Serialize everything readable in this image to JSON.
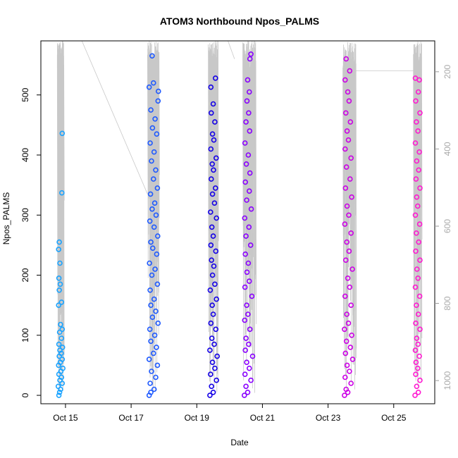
{
  "chart_data": {
    "type": "scatter",
    "title": "ATOM3 Northbound Npos_PALMS",
    "xlabel": "Date",
    "ylabel": "Npos_PALMS",
    "x_ticks": [
      "Oct 15",
      "Oct 17",
      "Oct 19",
      "Oct 21",
      "Oct 23",
      "Oct 25"
    ],
    "y_ticks": [
      0,
      100,
      200,
      300,
      400,
      500
    ],
    "y2_ticks": [
      200,
      400,
      600,
      800,
      1000
    ],
    "xlim_days": [
      14.25,
      26.25
    ],
    "ylim": [
      -14,
      590
    ],
    "y2lim": [
      1060,
      120
    ],
    "y2_reversed": true,
    "grid": false,
    "legend": "none",
    "secondary_series": {
      "name": "",
      "color": "#c8c8c8",
      "description_free": true
    },
    "clusters": [
      {
        "x_start": 14.75,
        "x_end": 14.95,
        "color": "#1aa3ff",
        "points": [
          [
            14.8,
            0
          ],
          [
            14.82,
            5
          ],
          [
            14.85,
            10
          ],
          [
            14.78,
            15
          ],
          [
            14.9,
            20
          ],
          [
            14.83,
            25
          ],
          [
            14.88,
            30
          ],
          [
            14.8,
            35
          ],
          [
            14.86,
            40
          ],
          [
            14.92,
            45
          ],
          [
            14.79,
            50
          ],
          [
            14.84,
            55
          ],
          [
            14.9,
            60
          ],
          [
            14.81,
            65
          ],
          [
            14.87,
            70
          ],
          [
            14.83,
            75
          ],
          [
            14.91,
            80
          ],
          [
            14.8,
            85
          ],
          [
            14.88,
            95
          ],
          [
            14.82,
            105
          ],
          [
            14.9,
            110
          ],
          [
            14.85,
            118
          ],
          [
            14.79,
            150
          ],
          [
            14.88,
            155
          ],
          [
            14.81,
            175
          ],
          [
            14.84,
            185
          ],
          [
            14.8,
            195
          ],
          [
            14.83,
            220
          ],
          [
            14.79,
            243
          ],
          [
            14.81,
            255
          ],
          [
            14.89,
            337
          ],
          [
            14.9,
            436
          ]
        ]
      },
      {
        "x_start": 17.5,
        "x_end": 17.85,
        "color": "#1f5aff",
        "points": [
          [
            17.55,
            0
          ],
          [
            17.6,
            5
          ],
          [
            17.7,
            10
          ],
          [
            17.58,
            20
          ],
          [
            17.75,
            30
          ],
          [
            17.62,
            40
          ],
          [
            17.8,
            50
          ],
          [
            17.55,
            60
          ],
          [
            17.68,
            70
          ],
          [
            17.77,
            80
          ],
          [
            17.6,
            90
          ],
          [
            17.72,
            100
          ],
          [
            17.57,
            110
          ],
          [
            17.82,
            120
          ],
          [
            17.65,
            130
          ],
          [
            17.75,
            140
          ],
          [
            17.6,
            150
          ],
          [
            17.7,
            160
          ],
          [
            17.58,
            175
          ],
          [
            17.8,
            185
          ],
          [
            17.63,
            200
          ],
          [
            17.73,
            210
          ],
          [
            17.56,
            220
          ],
          [
            17.78,
            235
          ],
          [
            17.66,
            245
          ],
          [
            17.6,
            255
          ],
          [
            17.81,
            265
          ],
          [
            17.7,
            280
          ],
          [
            17.57,
            290
          ],
          [
            17.76,
            300
          ],
          [
            17.64,
            310
          ],
          [
            17.72,
            320
          ],
          [
            17.59,
            335
          ],
          [
            17.8,
            345
          ],
          [
            17.68,
            360
          ],
          [
            17.75,
            375
          ],
          [
            17.62,
            390
          ],
          [
            17.7,
            405
          ],
          [
            17.58,
            420
          ],
          [
            17.78,
            435
          ],
          [
            17.65,
            445
          ],
          [
            17.73,
            460
          ],
          [
            17.6,
            475
          ],
          [
            17.82,
            490
          ],
          [
            17.55,
            513
          ],
          [
            17.68,
            520
          ],
          [
            17.64,
            565
          ],
          [
            17.83,
            506
          ]
        ]
      },
      {
        "x_start": 19.35,
        "x_end": 19.65,
        "color": "#1400e6",
        "points": [
          [
            19.4,
            0
          ],
          [
            19.5,
            5
          ],
          [
            19.45,
            15
          ],
          [
            19.6,
            25
          ],
          [
            19.42,
            35
          ],
          [
            19.55,
            45
          ],
          [
            19.48,
            55
          ],
          [
            19.62,
            65
          ],
          [
            19.4,
            75
          ],
          [
            19.53,
            85
          ],
          [
            19.46,
            95
          ],
          [
            19.58,
            110
          ],
          [
            19.43,
            120
          ],
          [
            19.5,
            135
          ],
          [
            19.47,
            150
          ],
          [
            19.6,
            160
          ],
          [
            19.41,
            175
          ],
          [
            19.55,
            185
          ],
          [
            19.48,
            200
          ],
          [
            19.52,
            215
          ],
          [
            19.45,
            225
          ],
          [
            19.58,
            240
          ],
          [
            19.43,
            250
          ],
          [
            19.5,
            265
          ],
          [
            19.46,
            280
          ],
          [
            19.6,
            295
          ],
          [
            19.42,
            305
          ],
          [
            19.54,
            320
          ],
          [
            19.48,
            335
          ],
          [
            19.57,
            345
          ],
          [
            19.44,
            360
          ],
          [
            19.51,
            375
          ],
          [
            19.47,
            385
          ],
          [
            19.59,
            395
          ],
          [
            19.43,
            410
          ],
          [
            19.52,
            425
          ],
          [
            19.48,
            435
          ],
          [
            19.55,
            455
          ],
          [
            19.44,
            470
          ],
          [
            19.5,
            485
          ],
          [
            19.43,
            513
          ],
          [
            19.57,
            528
          ]
        ]
      },
      {
        "x_start": 20.4,
        "x_end": 20.8,
        "color": "#8a00ff",
        "points": [
          [
            20.45,
            0
          ],
          [
            20.55,
            5
          ],
          [
            20.5,
            15
          ],
          [
            20.65,
            25
          ],
          [
            20.47,
            35
          ],
          [
            20.6,
            45
          ],
          [
            20.52,
            55
          ],
          [
            20.7,
            65
          ],
          [
            20.48,
            75
          ],
          [
            20.58,
            85
          ],
          [
            20.5,
            95
          ],
          [
            20.62,
            110
          ],
          [
            20.46,
            125
          ],
          [
            20.56,
            135
          ],
          [
            20.52,
            150
          ],
          [
            20.68,
            165
          ],
          [
            20.47,
            180
          ],
          [
            20.6,
            190
          ],
          [
            20.53,
            205
          ],
          [
            20.57,
            220
          ],
          [
            20.48,
            235
          ],
          [
            20.64,
            250
          ],
          [
            20.5,
            265
          ],
          [
            20.59,
            280
          ],
          [
            20.46,
            295
          ],
          [
            20.66,
            310
          ],
          [
            20.52,
            325
          ],
          [
            20.6,
            340
          ],
          [
            20.48,
            355
          ],
          [
            20.62,
            370
          ],
          [
            20.51,
            385
          ],
          [
            20.57,
            400
          ],
          [
            20.47,
            420
          ],
          [
            20.61,
            440
          ],
          [
            20.5,
            455
          ],
          [
            20.58,
            470
          ],
          [
            20.53,
            490
          ],
          [
            20.6,
            505
          ],
          [
            20.55,
            525
          ],
          [
            20.62,
            560
          ],
          [
            20.65,
            568
          ]
        ]
      },
      {
        "x_start": 23.45,
        "x_end": 23.85,
        "color": "#cc00e6",
        "points": [
          [
            23.5,
            0
          ],
          [
            23.6,
            5
          ],
          [
            23.55,
            10
          ],
          [
            23.7,
            20
          ],
          [
            23.52,
            30
          ],
          [
            23.65,
            40
          ],
          [
            23.58,
            50
          ],
          [
            23.75,
            60
          ],
          [
            23.53,
            70
          ],
          [
            23.68,
            80
          ],
          [
            23.56,
            90
          ],
          [
            23.72,
            100
          ],
          [
            23.5,
            110
          ],
          [
            23.62,
            120
          ],
          [
            23.57,
            135
          ],
          [
            23.7,
            150
          ],
          [
            23.52,
            165
          ],
          [
            23.66,
            180
          ],
          [
            23.6,
            195
          ],
          [
            23.74,
            210
          ],
          [
            23.54,
            225
          ],
          [
            23.64,
            240
          ],
          [
            23.57,
            255
          ],
          [
            23.7,
            270
          ],
          [
            23.51,
            285
          ],
          [
            23.63,
            300
          ],
          [
            23.58,
            315
          ],
          [
            23.72,
            330
          ],
          [
            23.53,
            345
          ],
          [
            23.67,
            360
          ],
          [
            23.56,
            380
          ],
          [
            23.7,
            395
          ],
          [
            23.52,
            410
          ],
          [
            23.62,
            425
          ],
          [
            23.58,
            440
          ],
          [
            23.68,
            455
          ],
          [
            23.54,
            470
          ],
          [
            23.64,
            490
          ],
          [
            23.6,
            505
          ],
          [
            23.52,
            525
          ],
          [
            23.55,
            560
          ],
          [
            23.66,
            540
          ]
        ]
      },
      {
        "x_start": 25.6,
        "x_end": 25.85,
        "color": "#ff1ad1",
        "points": [
          [
            25.65,
            0
          ],
          [
            25.75,
            5
          ],
          [
            25.7,
            15
          ],
          [
            25.8,
            25
          ],
          [
            25.67,
            35
          ],
          [
            25.73,
            45
          ],
          [
            25.68,
            55
          ],
          [
            25.78,
            65
          ],
          [
            25.66,
            75
          ],
          [
            25.74,
            85
          ],
          [
            25.7,
            95
          ],
          [
            25.8,
            110
          ],
          [
            25.67,
            120
          ],
          [
            25.75,
            135
          ],
          [
            25.69,
            150
          ],
          [
            25.79,
            165
          ],
          [
            25.66,
            180
          ],
          [
            25.74,
            195
          ],
          [
            25.71,
            210
          ],
          [
            25.8,
            225
          ],
          [
            25.67,
            240
          ],
          [
            25.76,
            255
          ],
          [
            25.69,
            270
          ],
          [
            25.79,
            285
          ],
          [
            25.66,
            300
          ],
          [
            25.73,
            315
          ],
          [
            25.7,
            330
          ],
          [
            25.8,
            345
          ],
          [
            25.68,
            360
          ],
          [
            25.76,
            375
          ],
          [
            25.7,
            390
          ],
          [
            25.78,
            405
          ],
          [
            25.66,
            420
          ],
          [
            25.74,
            440
          ],
          [
            25.69,
            455
          ],
          [
            25.8,
            470
          ],
          [
            25.67,
            490
          ],
          [
            25.75,
            505
          ],
          [
            25.66,
            528
          ],
          [
            25.78,
            525
          ]
        ]
      }
    ]
  }
}
